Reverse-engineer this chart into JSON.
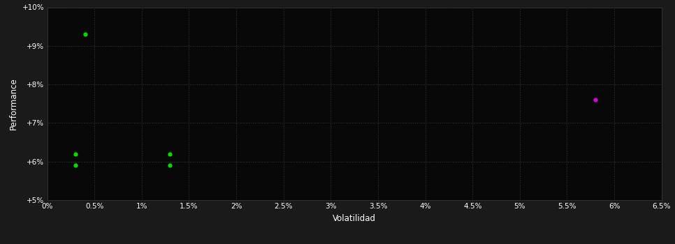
{
  "background_color": "#1a1a1a",
  "plot_bg_color": "#080808",
  "xlabel": "Volatilidad",
  "ylabel": "Performance",
  "xlim": [
    0.0,
    0.065
  ],
  "ylim": [
    0.05,
    0.1
  ],
  "xticks": [
    0.0,
    0.005,
    0.01,
    0.015,
    0.02,
    0.025,
    0.03,
    0.035,
    0.04,
    0.045,
    0.05,
    0.055,
    0.06,
    0.065
  ],
  "xticklabels": [
    "0%",
    "0.5%",
    "1%",
    "1.5%",
    "2%",
    "2.5%",
    "3%",
    "3.5%",
    "4%",
    "4.5%",
    "5%",
    "5.5%",
    "6%",
    "6.5%"
  ],
  "yticks": [
    0.05,
    0.06,
    0.07,
    0.08,
    0.09,
    0.1
  ],
  "yticklabels": [
    "+5%",
    "+6%",
    "+7%",
    "+8%",
    "+9%",
    "+10%"
  ],
  "green_points": [
    [
      0.004,
      0.093
    ],
    [
      0.003,
      0.062
    ],
    [
      0.003,
      0.059
    ],
    [
      0.013,
      0.062
    ],
    [
      0.013,
      0.059
    ]
  ],
  "magenta_points": [
    [
      0.058,
      0.076
    ]
  ],
  "green_color": "#00dd00",
  "magenta_color": "#dd00dd",
  "tick_color": "#ffffff",
  "label_color": "#ffffff",
  "figsize": [
    9.66,
    3.5
  ],
  "dpi": 100
}
